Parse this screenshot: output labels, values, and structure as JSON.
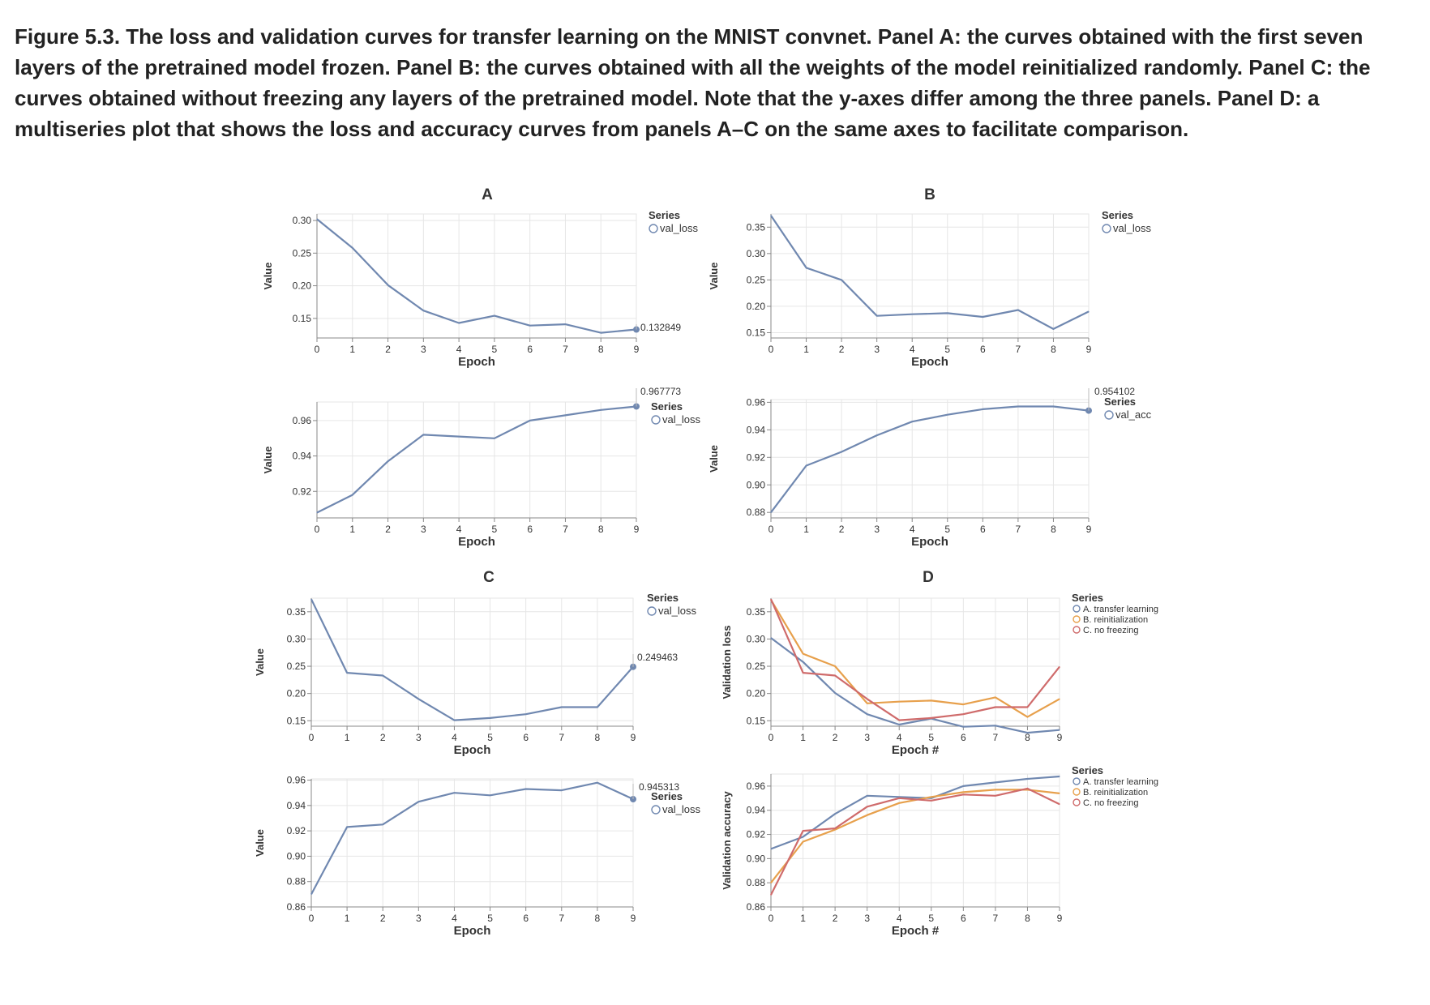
{
  "caption": "Figure 5.3. The loss and validation curves for transfer learning on the MNIST convnet. Panel A: the curves obtained with the first seven layers of the pretrained model frozen. Panel B: the curves obtained with all the weights of the model reinitialized randomly. Panel C: the curves obtained without freezing any layers of the pretrained model. Note that the y-axes differ among the three panels. Panel D: a multiseries plot that shows the loss and accuracy curves from panels A–C on the same axes to facilitate comparison.",
  "colors": {
    "A": "#7088b0",
    "B": "#e7a04c",
    "C": "#cf6b6b",
    "grid": "#e6e6e6",
    "axis": "#888888"
  },
  "panel_labels": {
    "A": "A",
    "B": "B",
    "C": "C",
    "D": "D"
  },
  "chart_data": [
    {
      "id": "A-loss",
      "panel": "A",
      "type": "line",
      "xlabel": "Epoch",
      "ylabel": "Value",
      "x": [
        0,
        1,
        2,
        3,
        4,
        5,
        6,
        7,
        8,
        9
      ],
      "xticks": [
        "0",
        "1",
        "2",
        "3",
        "4",
        "5",
        "6",
        "7",
        "8",
        "9"
      ],
      "ylim": [
        0.12,
        0.31
      ],
      "yticks": [
        {
          "v": 0.15,
          "label": "0.15"
        },
        {
          "v": 0.2,
          "label": "0.20"
        },
        {
          "v": 0.25,
          "label": "0.25"
        },
        {
          "v": 0.3,
          "label": "0.30"
        }
      ],
      "legend_title": "Series",
      "legend_items": [
        "val_loss"
      ],
      "end_label": "0.132849",
      "series": [
        {
          "key": "A",
          "values": [
            0.302,
            0.258,
            0.201,
            0.162,
            0.143,
            0.154,
            0.139,
            0.141,
            0.128,
            0.133
          ]
        }
      ]
    },
    {
      "id": "A-acc",
      "panel": "A",
      "type": "line",
      "xlabel": "Epoch",
      "ylabel": "Value",
      "x": [
        0,
        1,
        2,
        3,
        4,
        5,
        6,
        7,
        8,
        9
      ],
      "xticks": [
        "0",
        "1",
        "2",
        "3",
        "4",
        "5",
        "6",
        "7",
        "8",
        "9"
      ],
      "ylim": [
        0.905,
        0.9705
      ],
      "yticks": [
        {
          "v": 0.92,
          "label": "0.92"
        },
        {
          "v": 0.94,
          "label": "0.94"
        },
        {
          "v": 0.96,
          "label": "0.96"
        }
      ],
      "legend_title": "Series",
      "legend_items": [
        "val_loss"
      ],
      "end_label": "0.967773",
      "series": [
        {
          "key": "A",
          "values": [
            0.908,
            0.918,
            0.937,
            0.952,
            0.951,
            0.95,
            0.96,
            0.963,
            0.966,
            0.968
          ]
        }
      ]
    },
    {
      "id": "B-loss",
      "panel": "B",
      "type": "line",
      "xlabel": "Epoch",
      "ylabel": "Value",
      "x": [
        0,
        1,
        2,
        3,
        4,
        5,
        6,
        7,
        8,
        9
      ],
      "xticks": [
        "0",
        "1",
        "2",
        "3",
        "4",
        "5",
        "6",
        "7",
        "8",
        "9"
      ],
      "ylim": [
        0.14,
        0.375
      ],
      "yticks": [
        {
          "v": 0.15,
          "label": "0.15"
        },
        {
          "v": 0.2,
          "label": "0.20"
        },
        {
          "v": 0.25,
          "label": "0.25"
        },
        {
          "v": 0.3,
          "label": "0.30"
        },
        {
          "v": 0.35,
          "label": "0.35"
        }
      ],
      "legend_title": "Series",
      "legend_items": [
        "val_loss"
      ],
      "series": [
        {
          "key": "A",
          "values": [
            0.372,
            0.273,
            0.25,
            0.182,
            0.185,
            0.187,
            0.18,
            0.193,
            0.157,
            0.19
          ]
        }
      ]
    },
    {
      "id": "B-acc",
      "panel": "B",
      "type": "line",
      "xlabel": "Epoch",
      "ylabel": "Value",
      "x": [
        0,
        1,
        2,
        3,
        4,
        5,
        6,
        7,
        8,
        9
      ],
      "xticks": [
        "0",
        "1",
        "2",
        "3",
        "4",
        "5",
        "6",
        "7",
        "8",
        "9"
      ],
      "ylim": [
        0.876,
        0.962
      ],
      "yticks": [
        {
          "v": 0.88,
          "label": "0.88"
        },
        {
          "v": 0.9,
          "label": "0.90"
        },
        {
          "v": 0.92,
          "label": "0.92"
        },
        {
          "v": 0.94,
          "label": "0.94"
        },
        {
          "v": 0.96,
          "label": "0.96"
        }
      ],
      "legend_title": "Series",
      "legend_items": [
        "val_acc"
      ],
      "end_label": "0.954102",
      "series": [
        {
          "key": "A",
          "values": [
            0.88,
            0.914,
            0.924,
            0.936,
            0.946,
            0.951,
            0.955,
            0.957,
            0.957,
            0.954
          ]
        }
      ]
    },
    {
      "id": "C-loss",
      "panel": "C",
      "type": "line",
      "xlabel": "Epoch",
      "ylabel": "Value",
      "x": [
        0,
        1,
        2,
        3,
        4,
        5,
        6,
        7,
        8,
        9
      ],
      "xticks": [
        "0",
        "1",
        "2",
        "3",
        "4",
        "5",
        "6",
        "7",
        "8",
        "9"
      ],
      "ylim": [
        0.14,
        0.375
      ],
      "yticks": [
        {
          "v": 0.15,
          "label": "0.15"
        },
        {
          "v": 0.2,
          "label": "0.20"
        },
        {
          "v": 0.25,
          "label": "0.25"
        },
        {
          "v": 0.3,
          "label": "0.30"
        },
        {
          "v": 0.35,
          "label": "0.35"
        }
      ],
      "legend_title": "Series",
      "legend_items": [
        "val_loss"
      ],
      "end_label": "0.249463",
      "series": [
        {
          "key": "A",
          "values": [
            0.373,
            0.238,
            0.233,
            0.19,
            0.151,
            0.155,
            0.162,
            0.175,
            0.175,
            0.249
          ]
        }
      ]
    },
    {
      "id": "C-acc",
      "panel": "C",
      "type": "line",
      "xlabel": "Epoch",
      "ylabel": "Value",
      "x": [
        0,
        1,
        2,
        3,
        4,
        5,
        6,
        7,
        8,
        9
      ],
      "xticks": [
        "0",
        "1",
        "2",
        "3",
        "4",
        "5",
        "6",
        "7",
        "8",
        "9"
      ],
      "ylim": [
        0.86,
        0.961
      ],
      "yticks": [
        {
          "v": 0.86,
          "label": "0.86"
        },
        {
          "v": 0.88,
          "label": "0.88"
        },
        {
          "v": 0.9,
          "label": "0.90"
        },
        {
          "v": 0.92,
          "label": "0.92"
        },
        {
          "v": 0.94,
          "label": "0.94"
        },
        {
          "v": 0.96,
          "label": "0.96"
        }
      ],
      "legend_title": "Series",
      "legend_items": [
        "val_loss"
      ],
      "end_label": "0.945313",
      "series": [
        {
          "key": "A",
          "values": [
            0.87,
            0.923,
            0.925,
            0.943,
            0.95,
            0.948,
            0.953,
            0.952,
            0.958,
            0.945
          ]
        }
      ]
    },
    {
      "id": "D-loss",
      "panel": "D",
      "type": "line",
      "xlabel": "Epoch #",
      "ylabel": "Validation loss",
      "x": [
        0,
        1,
        2,
        3,
        4,
        5,
        6,
        7,
        8,
        9
      ],
      "xticks": [
        "0",
        "1",
        "2",
        "3",
        "4",
        "5",
        "6",
        "7",
        "8",
        "9"
      ],
      "ylim": [
        0.14,
        0.375
      ],
      "yticks": [
        {
          "v": 0.15,
          "label": "0.15"
        },
        {
          "v": 0.2,
          "label": "0.20"
        },
        {
          "v": 0.25,
          "label": "0.25"
        },
        {
          "v": 0.3,
          "label": "0.30"
        },
        {
          "v": 0.35,
          "label": "0.35"
        }
      ],
      "legend_title": "Series",
      "legend_items": [
        "A. transfer learning",
        "B. reinitialization",
        "C. no freezing"
      ],
      "series": [
        {
          "name": "A. transfer learning",
          "key": "A",
          "values": [
            0.302,
            0.258,
            0.201,
            0.162,
            0.143,
            0.154,
            0.139,
            0.141,
            0.128,
            0.133
          ]
        },
        {
          "name": "B. reinitialization",
          "key": "B",
          "values": [
            0.372,
            0.273,
            0.25,
            0.182,
            0.185,
            0.187,
            0.18,
            0.193,
            0.157,
            0.19
          ]
        },
        {
          "name": "C. no freezing",
          "key": "C",
          "values": [
            0.373,
            0.238,
            0.233,
            0.19,
            0.151,
            0.155,
            0.162,
            0.175,
            0.175,
            0.249
          ]
        }
      ]
    },
    {
      "id": "D-acc",
      "panel": "D",
      "type": "line",
      "xlabel": "Epoch #",
      "ylabel": "Validation accuracy",
      "x": [
        0,
        1,
        2,
        3,
        4,
        5,
        6,
        7,
        8,
        9
      ],
      "xticks": [
        "0",
        "1",
        "2",
        "3",
        "4",
        "5",
        "6",
        "7",
        "8",
        "9"
      ],
      "ylim": [
        0.86,
        0.97
      ],
      "yticks": [
        {
          "v": 0.86,
          "label": "0.86"
        },
        {
          "v": 0.88,
          "label": "0.88"
        },
        {
          "v": 0.9,
          "label": "0.90"
        },
        {
          "v": 0.92,
          "label": "0.92"
        },
        {
          "v": 0.94,
          "label": "0.94"
        },
        {
          "v": 0.96,
          "label": "0.96"
        }
      ],
      "legend_title": "Series",
      "legend_items": [
        "A. transfer learning",
        "B. reinitialization",
        "C. no freezing"
      ],
      "series": [
        {
          "name": "A. transfer learning",
          "key": "A",
          "values": [
            0.908,
            0.918,
            0.937,
            0.952,
            0.951,
            0.95,
            0.96,
            0.963,
            0.966,
            0.968
          ]
        },
        {
          "name": "B. reinitialization",
          "key": "B",
          "values": [
            0.88,
            0.914,
            0.924,
            0.936,
            0.946,
            0.951,
            0.955,
            0.957,
            0.957,
            0.954
          ]
        },
        {
          "name": "C. no freezing",
          "key": "C",
          "values": [
            0.87,
            0.923,
            0.925,
            0.943,
            0.95,
            0.948,
            0.953,
            0.952,
            0.958,
            0.945
          ]
        }
      ]
    }
  ]
}
